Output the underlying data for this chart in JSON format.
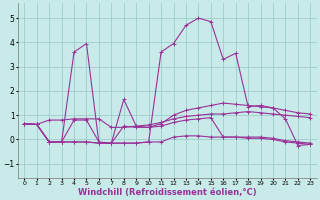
{
  "background_color": "#c8eae8",
  "grid_color": "#9ecece",
  "line_color": "#993399",
  "marker": "+",
  "xlabel": "Windchill (Refroidissement éolien,°C)",
  "xlabel_fontsize": 6.0,
  "xlim": [
    -0.5,
    23.5
  ],
  "ylim": [
    -1.6,
    5.6
  ],
  "yticks": [
    -1,
    0,
    1,
    2,
    3,
    4,
    5
  ],
  "xticks": [
    0,
    1,
    2,
    3,
    4,
    5,
    6,
    7,
    8,
    9,
    10,
    11,
    12,
    13,
    14,
    15,
    16,
    17,
    18,
    19,
    20,
    21,
    22,
    23
  ],
  "lines": [
    [
      0,
      0.65,
      1,
      0.62,
      2,
      0.8,
      3,
      0.8,
      4,
      0.85,
      5,
      0.85,
      6,
      0.85,
      7,
      0.5,
      8,
      0.5,
      9,
      0.55,
      10,
      0.6,
      11,
      0.7,
      12,
      0.85,
      13,
      0.95,
      14,
      1.0,
      15,
      1.05,
      16,
      1.05,
      17,
      1.1,
      18,
      1.15,
      19,
      1.1,
      20,
      1.05,
      21,
      1.0,
      22,
      0.95,
      23,
      0.9
    ],
    [
      0,
      0.65,
      1,
      0.62,
      2,
      -0.1,
      3,
      -0.1,
      4,
      0.8,
      5,
      0.8,
      6,
      -0.1,
      7,
      -0.15,
      8,
      1.65,
      9,
      0.55,
      10,
      0.5,
      11,
      0.65,
      12,
      1.0,
      13,
      1.2,
      14,
      1.3,
      15,
      1.4,
      16,
      1.5,
      17,
      1.45,
      18,
      1.4,
      19,
      1.35,
      20,
      1.3,
      21,
      1.2,
      22,
      1.1,
      23,
      1.05
    ],
    [
      0,
      0.65,
      1,
      0.62,
      2,
      -0.1,
      3,
      -0.1,
      4,
      -0.1,
      5,
      -0.1,
      6,
      -0.15,
      7,
      -0.15,
      8,
      0.55,
      9,
      0.5,
      10,
      0.5,
      11,
      0.55,
      12,
      0.7,
      13,
      0.8,
      14,
      0.85,
      15,
      0.9,
      16,
      0.1,
      17,
      0.1,
      18,
      0.1,
      19,
      0.1,
      20,
      0.05,
      21,
      -0.05,
      22,
      -0.1,
      23,
      -0.15
    ],
    [
      0,
      0.65,
      1,
      0.62,
      2,
      -0.1,
      3,
      -0.1,
      4,
      -0.1,
      5,
      -0.1,
      6,
      -0.15,
      7,
      -0.15,
      8,
      -0.15,
      9,
      -0.15,
      10,
      -0.1,
      11,
      -0.1,
      12,
      0.1,
      13,
      0.15,
      14,
      0.15,
      15,
      0.1,
      16,
      0.1,
      17,
      0.1,
      18,
      0.05,
      19,
      0.05,
      20,
      0.0,
      21,
      -0.1,
      22,
      -0.15,
      23,
      -0.2
    ],
    [
      0,
      0.65,
      1,
      0.62,
      2,
      -0.1,
      3,
      -0.1,
      4,
      3.6,
      5,
      3.95,
      6,
      -0.15,
      7,
      -0.15,
      8,
      -0.15,
      9,
      -0.15,
      10,
      -0.1,
      11,
      3.6,
      12,
      3.95,
      13,
      4.7,
      14,
      5.0,
      15,
      4.85,
      16,
      3.3,
      17,
      3.55,
      18,
      1.35,
      19,
      1.4,
      20,
      1.3,
      21,
      0.85,
      22,
      -0.25,
      23,
      -0.2
    ]
  ]
}
